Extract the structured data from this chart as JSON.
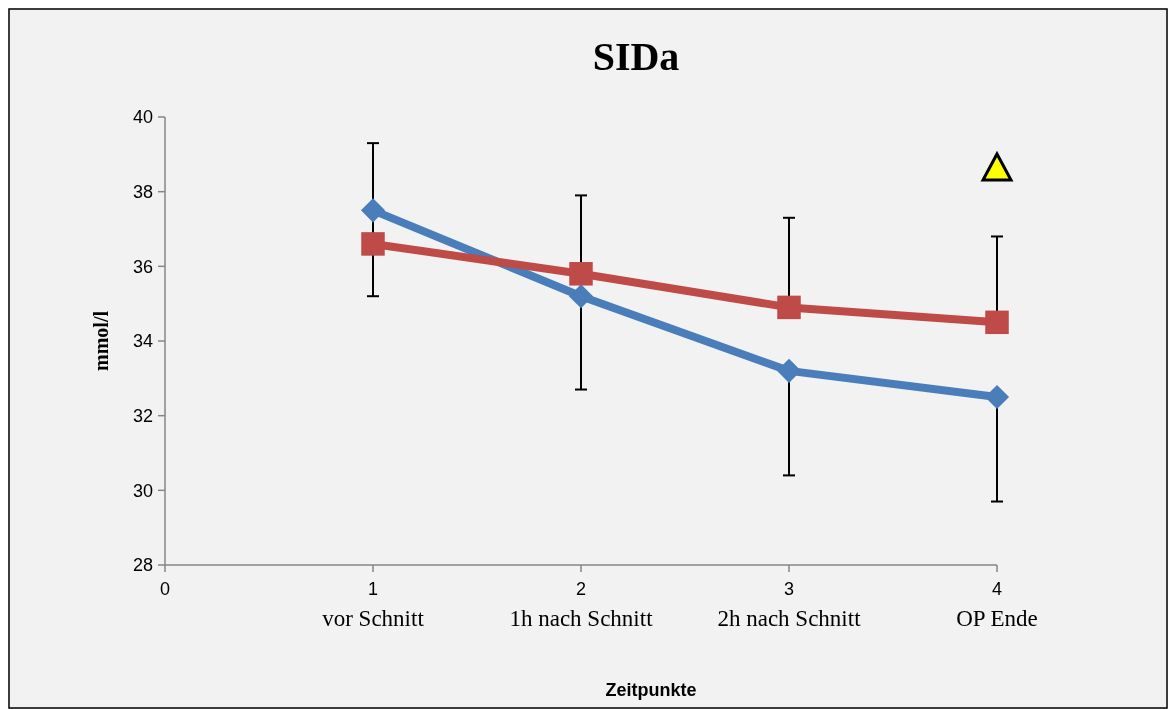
{
  "chart_data": {
    "type": "line",
    "title": "SIDa",
    "xlabel": "Zeitpunkte",
    "ylabel": "mmol/l",
    "x": [
      1,
      2,
      3,
      4
    ],
    "xlim": [
      0,
      4
    ],
    "xticks": [
      0,
      {
        "value": 1,
        "label": "1\nvor Schnitt"
      },
      {
        "value": 2,
        "label": "2\n1h nach Schnitt"
      },
      {
        "value": 3,
        "label": "3\n2h nach Schnitt"
      },
      {
        "value": 4,
        "label": "4\nOP Ende"
      }
    ],
    "ylim": [
      28,
      40
    ],
    "yticks": [
      28,
      30,
      32,
      34,
      36,
      38,
      40
    ],
    "grid": false,
    "series": [
      {
        "color": "#4a7ebb",
        "marker": "diamond",
        "values": [
          37.5,
          35.2,
          33.2,
          32.5
        ],
        "errors": [
          [
            35.2,
            37.5
          ],
          [
            32.7,
            35.2
          ],
          [
            30.4,
            33.2
          ],
          [
            29.7,
            32.5
          ]
        ]
      },
      {
        "color": "#be4b48",
        "marker": "square",
        "values": [
          36.6,
          35.8,
          34.9,
          34.5
        ],
        "errors": [
          [
            36.6,
            39.3
          ],
          [
            35.8,
            37.9
          ],
          [
            34.9,
            37.3
          ],
          [
            34.5,
            36.8
          ]
        ]
      }
    ]
  }
}
